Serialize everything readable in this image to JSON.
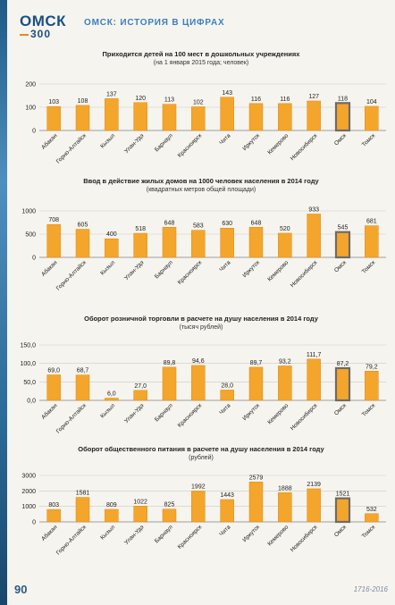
{
  "header": {
    "logo_main": "ОМСК",
    "logo_sub": "300",
    "title": "ОМСК: ИСТОРИЯ В ЦИФРАХ"
  },
  "footer": {
    "page_number": "90",
    "code": "1716-2016"
  },
  "colors": {
    "bar": "#f4a52b",
    "bar_edge": "#e08a12",
    "highlight_outline": "#6b6b6b"
  },
  "chart_data": [
    {
      "type": "bar",
      "title": "Приходится детей на 100 мест в дошкольных учреждениях",
      "subtitle": "(на 1 января 2015 года; человек)",
      "categories": [
        "Абакан",
        "Горно-Алтайск",
        "Кызыл",
        "Улан-Удэ",
        "Барнаул",
        "Красноярск",
        "Чита",
        "Иркутск",
        "Кемерово",
        "Новосибирск",
        "Омск",
        "Томск"
      ],
      "values": [
        103,
        108,
        137,
        120,
        113,
        102,
        143,
        116,
        116,
        127,
        118,
        104
      ],
      "value_labels": [
        "103",
        "108",
        "137",
        "120",
        "113",
        "102",
        "143",
        "116",
        "116",
        "127",
        "118",
        "104"
      ],
      "yticks": [
        "0",
        "100",
        "200"
      ],
      "ylim": [
        0,
        200
      ],
      "highlight": "Омск",
      "grid": true
    },
    {
      "type": "bar",
      "title": "Ввод в действие жилых домов на 1000 человек населения в 2014 году",
      "subtitle": "(квадратных метров общей площади)",
      "categories": [
        "Абакан",
        "Горно-Алтайск",
        "Кызыл",
        "Улан-Удэ",
        "Барнаул",
        "Красноярск",
        "Чита",
        "Иркутск",
        "Кемерово",
        "Новосибирск",
        "Омск",
        "Томск"
      ],
      "values": [
        708,
        605,
        400,
        518,
        648,
        583,
        630,
        648,
        520,
        933,
        545,
        681
      ],
      "value_labels": [
        "708",
        "605",
        "400",
        "518",
        "648",
        "583",
        "630",
        "648",
        "520",
        "933",
        "545",
        "681"
      ],
      "yticks": [
        "0",
        "500",
        "1000"
      ],
      "ylim": [
        0,
        1000
      ],
      "highlight": "Омск",
      "grid": true
    },
    {
      "type": "bar",
      "title": "Оборот розничной торговли в расчете на душу населения в 2014 году",
      "subtitle": "(тысяч рублей)",
      "categories": [
        "Абакан",
        "Горно-Алтайск",
        "Кызыл",
        "Улан-Удэ",
        "Барнаул",
        "Красноярск",
        "Чита",
        "Иркутск",
        "Кемерово",
        "Новосибирск",
        "Омск",
        "Томск"
      ],
      "values": [
        69.0,
        68.7,
        6.0,
        27.0,
        89.8,
        94.6,
        28.0,
        89.7,
        93.2,
        111.7,
        87.2,
        79.2
      ],
      "value_labels": [
        "69,0",
        "68,7",
        "6,0",
        "27,0",
        "89,8",
        "94,6",
        "28,0",
        "89,7",
        "93,2",
        "111,7",
        "87,2",
        "79,2"
      ],
      "yticks": [
        "0,0",
        "50,0",
        "100,0",
        "150,0"
      ],
      "ylim": [
        0,
        150
      ],
      "highlight": "Омск",
      "grid": true
    },
    {
      "type": "bar",
      "title": "Оборот общественного питания в расчете на душу населения в 2014 году",
      "subtitle": "(рублей)",
      "categories": [
        "Абакан",
        "Горно-Алтайск",
        "Кызыл",
        "Улан-Удэ",
        "Барнаул",
        "Красноярск",
        "Чита",
        "Иркутск",
        "Кемерово",
        "Новосибирск",
        "Омск",
        "Томск"
      ],
      "values": [
        803,
        1581,
        809,
        1022,
        825,
        1992,
        1443,
        2579,
        1888,
        2139,
        1521,
        532
      ],
      "value_labels": [
        "803",
        "1581",
        "809",
        "1022",
        "825",
        "1992",
        "1443",
        "2579",
        "1888",
        "2139",
        "1521",
        "532"
      ],
      "yticks": [
        "0",
        "1000",
        "2000",
        "3000"
      ],
      "ylim": [
        0,
        3000
      ],
      "highlight": "Омск",
      "grid": true
    }
  ]
}
